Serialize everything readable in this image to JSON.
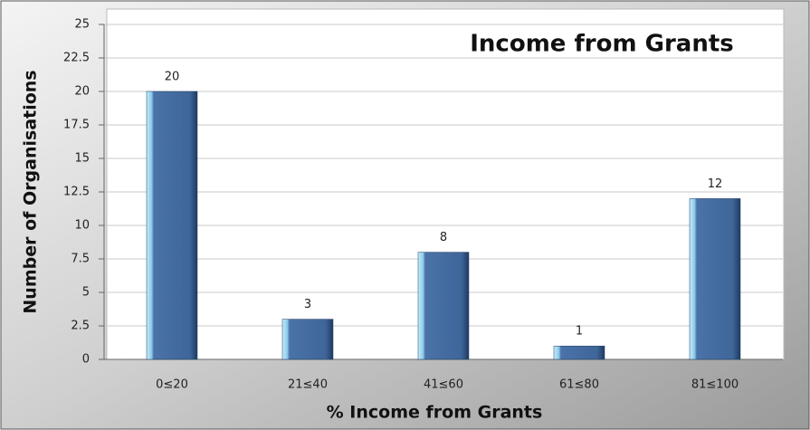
{
  "chart_data": {
    "type": "bar",
    "title": "Income from Grants",
    "categories": [
      "0≤20",
      "21≤40",
      "41≤60",
      "61≤80",
      "81≤100"
    ],
    "values": [
      20,
      3,
      8,
      1,
      12
    ],
    "color": "#3f6699",
    "x_label": "% Income from Grants",
    "y_label": "Number of Organisations",
    "ylim": [
      0,
      25
    ],
    "yticks": [
      0,
      2.5,
      5,
      7.5,
      10,
      12.5,
      15,
      17.5,
      20,
      22.5,
      25
    ],
    "grid": true
  }
}
